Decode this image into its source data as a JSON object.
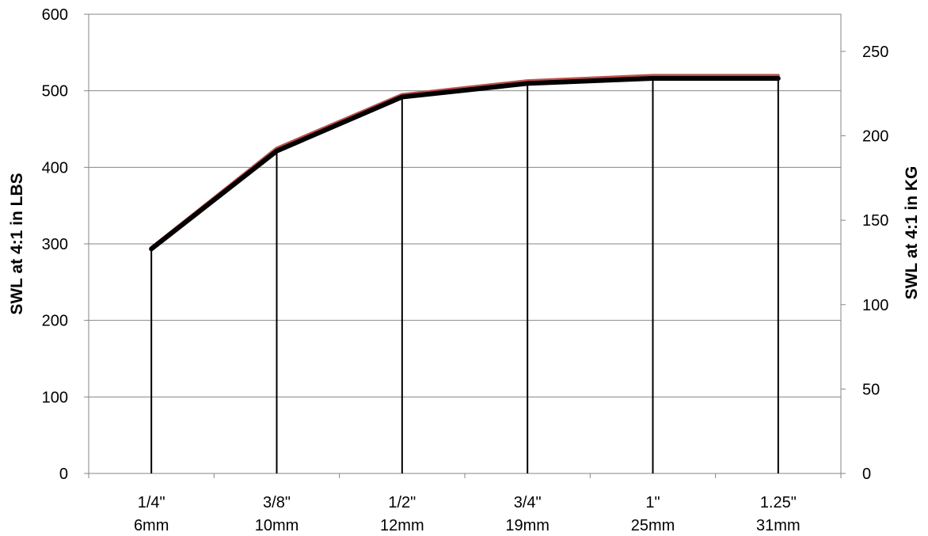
{
  "chart_data": {
    "type": "line",
    "title": "",
    "categories": [
      {
        "line1": "1/4\"",
        "line2": "6mm"
      },
      {
        "line1": "3/8\"",
        "line2": "10mm"
      },
      {
        "line1": "1/2\"",
        "line2": "12mm"
      },
      {
        "line1": "3/4\"",
        "line2": "19mm"
      },
      {
        "line1": "1\"",
        "line2": "25mm"
      },
      {
        "line1": "1.25\"",
        "line2": "31mm"
      }
    ],
    "series": [
      {
        "axis": "left",
        "color": "#c0504d",
        "values": [
          295,
          425,
          495,
          513,
          520,
          520
        ]
      },
      {
        "axis": "right",
        "color": "#000000",
        "values": [
          133,
          191,
          223,
          231,
          234,
          234
        ]
      }
    ],
    "drop_lines": true,
    "grid": true,
    "ylabel": "SWL at 4:1 in LBS",
    "ylim": [
      0,
      600
    ],
    "yticks": [
      0,
      100,
      200,
      300,
      400,
      500,
      600
    ],
    "y2label": "SWL at 4:1 in KG",
    "y2lim": [
      0,
      272
    ],
    "y2ticks": [
      0,
      50,
      100,
      150,
      200,
      250
    ]
  }
}
